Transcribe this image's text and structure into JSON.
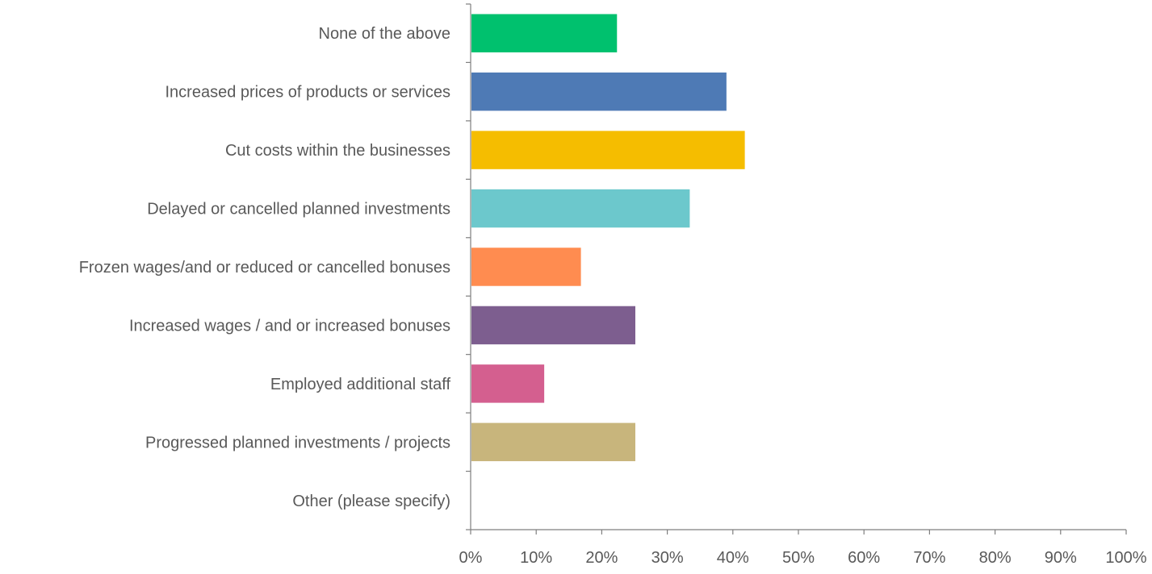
{
  "chart_data": {
    "type": "bar",
    "orientation": "horizontal",
    "title": "",
    "xlabel": "",
    "ylabel": "",
    "xlim": [
      0,
      100
    ],
    "grid": false,
    "legend": "none",
    "x_ticks": [
      "0%",
      "10%",
      "20%",
      "30%",
      "40%",
      "50%",
      "60%",
      "70%",
      "80%",
      "90%",
      "100%"
    ],
    "categories": [
      "None of the above",
      "Increased prices of products or services",
      "Cut costs within the businesses",
      "Delayed or cancelled planned investments",
      "Frozen wages/and or reduced or cancelled bonuses",
      "Increased wages / and or increased bonuses",
      "Employed additional staff",
      "Progressed planned investments / projects",
      "Other (please specify)"
    ],
    "values": [
      22.2,
      38.9,
      41.7,
      33.3,
      16.7,
      25.0,
      11.1,
      25.0,
      0
    ],
    "colors": [
      "#00c16e",
      "#4e7ab5",
      "#f5bd00",
      "#6cc8cc",
      "#ff8c50",
      "#7d5e8f",
      "#d45f8f",
      "#c8b57c",
      "#999999"
    ]
  }
}
